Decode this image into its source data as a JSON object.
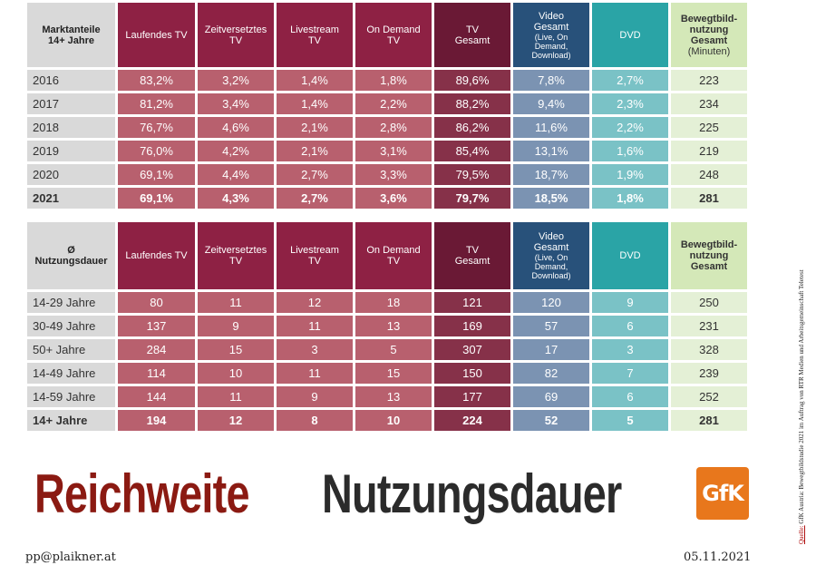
{
  "table1": {
    "headers": [
      "Marktanteile\n14+ Jahre",
      "Laufendes TV",
      "Zeitversetztes\nTV",
      "Livestream\nTV",
      "On Demand\nTV",
      "TV\nGesamt",
      "Video\nGesamt",
      "(Live, On\nDemand,\nDownload)",
      "DVD",
      "Bewegtbild-\nnutzung\nGesamt",
      "(Minuten)"
    ],
    "rows": [
      {
        "label": "2016",
        "values": [
          "83,2%",
          "3,2%",
          "1,4%",
          "1,8%",
          "89,6%",
          "7,8%",
          "2,7%",
          "223"
        ]
      },
      {
        "label": "2017",
        "values": [
          "81,2%",
          "3,4%",
          "1,4%",
          "2,2%",
          "88,2%",
          "9,4%",
          "2,3%",
          "234"
        ]
      },
      {
        "label": "2018",
        "values": [
          "76,7%",
          "4,6%",
          "2,1%",
          "2,8%",
          "86,2%",
          "11,6%",
          "2,2%",
          "225"
        ]
      },
      {
        "label": "2019",
        "values": [
          "76,0%",
          "4,2%",
          "2,1%",
          "3,1%",
          "85,4%",
          "13,1%",
          "1,6%",
          "219"
        ]
      },
      {
        "label": "2020",
        "values": [
          "69,1%",
          "4,4%",
          "2,7%",
          "3,3%",
          "79,5%",
          "18,7%",
          "1,9%",
          "248"
        ]
      },
      {
        "label": "2021",
        "values": [
          "69,1%",
          "4,3%",
          "2,7%",
          "3,6%",
          "79,7%",
          "18,5%",
          "1,8%",
          "281"
        ]
      }
    ]
  },
  "table2": {
    "headers": [
      "Ø\nNutzungsdauer",
      "Laufendes TV",
      "Zeitversetztes\nTV",
      "Livestream\nTV",
      "On Demand\nTV",
      "TV\nGesamt",
      "Video\nGesamt",
      "(Live, On\nDemand,\nDownload)",
      "DVD",
      "Bewegtbild-\nnutzung\nGesamt"
    ],
    "rows": [
      {
        "label": "14-29 Jahre",
        "values": [
          "80",
          "11",
          "12",
          "18",
          "121",
          "120",
          "9",
          "250"
        ]
      },
      {
        "label": "30-49 Jahre",
        "values": [
          "137",
          "9",
          "11",
          "13",
          "169",
          "57",
          "6",
          "231"
        ]
      },
      {
        "label": "50+ Jahre",
        "values": [
          "284",
          "15",
          "3",
          "5",
          "307",
          "17",
          "3",
          "328"
        ]
      },
      {
        "label": "14-49 Jahre",
        "values": [
          "114",
          "10",
          "11",
          "15",
          "150",
          "82",
          "7",
          "239"
        ]
      },
      {
        "label": "14-59 Jahre",
        "values": [
          "144",
          "11",
          "9",
          "13",
          "177",
          "69",
          "6",
          "252"
        ]
      },
      {
        "label": "14+ Jahre",
        "values": [
          "194",
          "12",
          "8",
          "10",
          "224",
          "52",
          "5",
          "281"
        ]
      }
    ]
  },
  "headline": {
    "part1": "Reichweite",
    "part2": "Nutzungsdauer"
  },
  "logo": {
    "text": "GfK",
    "color": "#e8771c"
  },
  "footer": {
    "email": "pp@plaikner.at",
    "date": "05.11.2021"
  },
  "source": {
    "label": "Quelle:",
    "text": " GfK Austria: Bewegtbildstudie 2021 im Auftrag von RTR Medien und Arbeitsgemeinschaft Teletest"
  },
  "colors": {
    "tv_header": "#8e2144",
    "tv_total_header": "#6a1935",
    "video_header": "#28517a",
    "dvd_header": "#2aa4a6",
    "bewegtbild_header": "#d4e8b8",
    "headline_red": "#8b1a12"
  }
}
